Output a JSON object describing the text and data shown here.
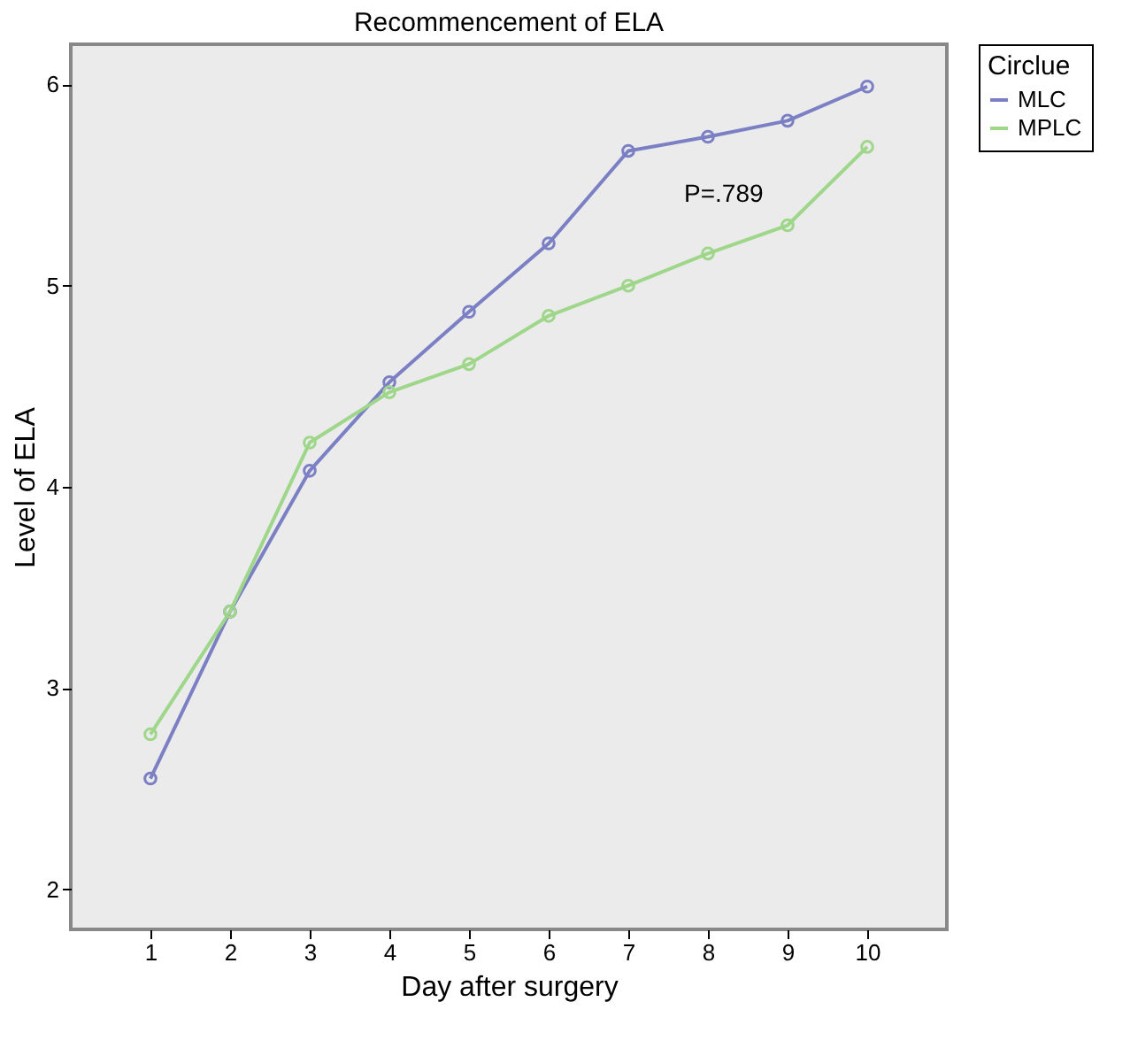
{
  "chart_data": {
    "type": "line",
    "title": "Recommencement of ELA",
    "xlabel": "Day after surgery",
    "ylabel": "Level of ELA",
    "legend_title": "Circlue",
    "x": [
      1,
      2,
      3,
      4,
      5,
      6,
      7,
      8,
      9,
      10
    ],
    "series": [
      {
        "name": "MLC",
        "color": "#7b7fc4",
        "values": [
          2.55,
          3.38,
          4.08,
          4.52,
          4.87,
          5.21,
          5.67,
          5.74,
          5.82,
          5.99
        ]
      },
      {
        "name": "MPLC",
        "color": "#9ed68a",
        "values": [
          2.77,
          3.38,
          4.22,
          4.47,
          4.61,
          4.85,
          5.0,
          5.16,
          5.3,
          5.69
        ]
      }
    ],
    "xlim": [
      0,
      11
    ],
    "xticks": [
      1,
      2,
      3,
      4,
      5,
      6,
      7,
      8,
      9,
      10
    ],
    "ylim": [
      1.8,
      6.2
    ],
    "yticks": [
      2,
      3,
      4,
      5,
      6
    ],
    "annotations": [
      "P=.789"
    ],
    "legend": "right",
    "marker": "circle",
    "grid": false
  }
}
